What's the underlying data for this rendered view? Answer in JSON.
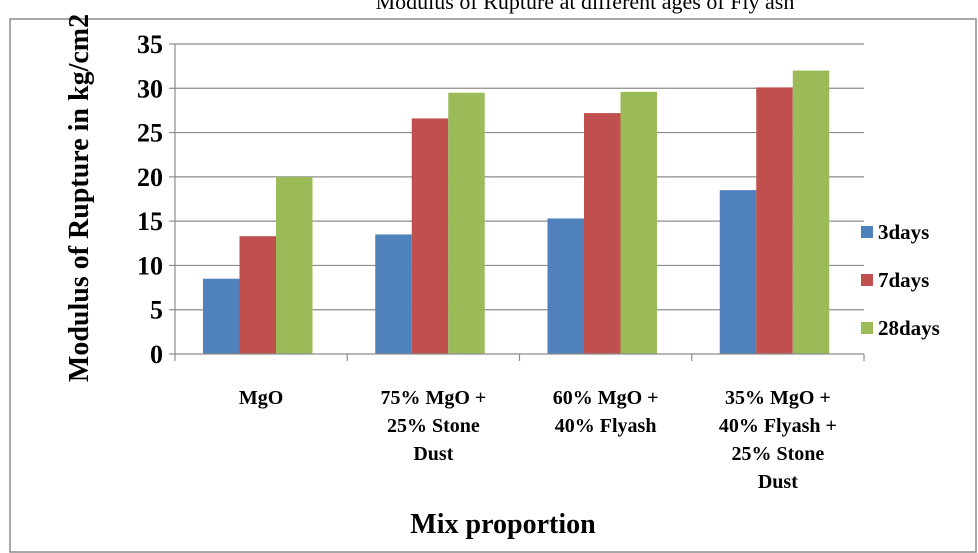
{
  "top_caption": "Modulus of Rupture at different ages of Fly ash",
  "chart_data": {
    "type": "bar",
    "categories": [
      [
        "MgO"
      ],
      [
        "75% MgO +",
        "25% Stone",
        "Dust"
      ],
      [
        "60% MgO +",
        "40% Flyash"
      ],
      [
        "35% MgO +",
        "40% Flyash +",
        "25% Stone",
        "Dust"
      ]
    ],
    "series": [
      {
        "name": "3days",
        "color": "#4F81BD",
        "values": [
          8.5,
          13.5,
          15.3,
          18.5
        ]
      },
      {
        "name": "7days",
        "color": "#C0504D",
        "values": [
          13.3,
          26.6,
          27.2,
          30.1
        ]
      },
      {
        "name": "28days",
        "color": "#9BBB59",
        "values": [
          20.0,
          29.5,
          29.6,
          32.0
        ]
      }
    ],
    "title": "",
    "xlabel": "Mix proportion",
    "ylabel": "Modulus of Rupture in kg/cm2",
    "ylim": [
      0,
      35
    ],
    "yticks": [
      0,
      5,
      10,
      15,
      20,
      25,
      30,
      35
    ],
    "grid": true,
    "legend_position": "right"
  }
}
